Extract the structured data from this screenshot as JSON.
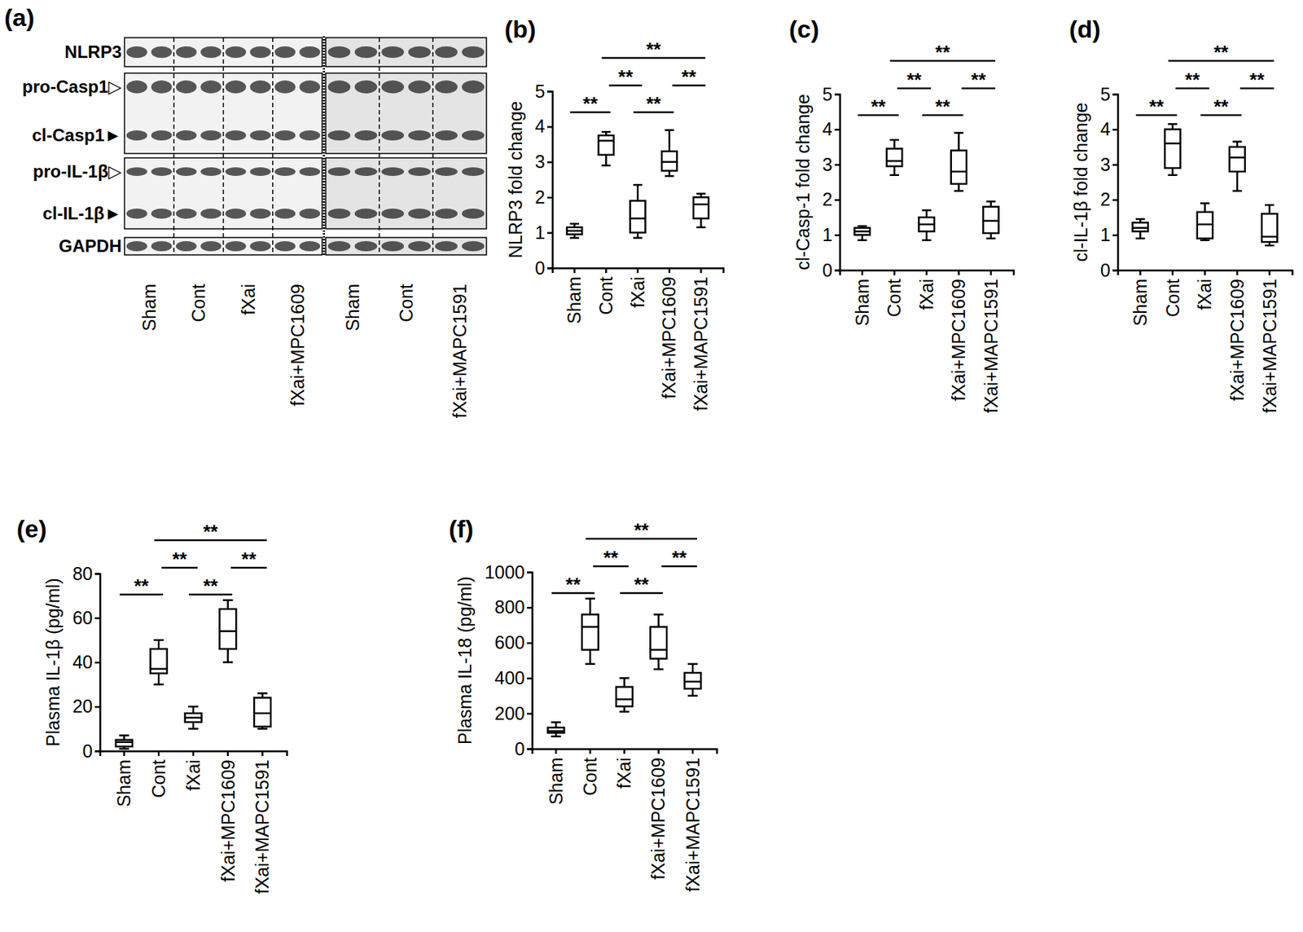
{
  "chart_data": [
    {
      "type": "blot",
      "title": "(a)",
      "rows": [
        "NLRP3",
        "pro-Casp1▷",
        "cl-Casp1►",
        "pro-IL-1β▷",
        "cl-IL-1β►",
        "GAPDH"
      ],
      "lane_groups": [
        [
          "Sham",
          "Cont",
          "fXai",
          "fXai+MPC1609"
        ],
        [
          "Sham",
          "Cont",
          "fXai+MAPC1591"
        ]
      ]
    },
    {
      "type": "box",
      "title": "(b)",
      "y_label": "NLRP3 fold change",
      "categories": [
        "Sham",
        "Cont",
        "fXai",
        "fXai+MPC1609",
        "fXai+MAPC1591"
      ],
      "ylim": [
        0,
        5
      ],
      "yticks": [
        0,
        1,
        2,
        3,
        4,
        5
      ],
      "boxes": [
        {
          "min": 0.85,
          "q1": 0.95,
          "median": 1.05,
          "q3": 1.15,
          "max": 1.25
        },
        {
          "min": 2.9,
          "q1": 3.2,
          "median": 3.6,
          "q3": 3.75,
          "max": 3.85
        },
        {
          "min": 0.85,
          "q1": 1.0,
          "median": 1.4,
          "q3": 1.9,
          "max": 2.35
        },
        {
          "min": 2.6,
          "q1": 2.75,
          "median": 3.0,
          "q3": 3.3,
          "max": 3.9
        },
        {
          "min": 1.15,
          "q1": 1.4,
          "median": 1.8,
          "q3": 2.0,
          "max": 2.1
        }
      ],
      "significance": [
        {
          "from": "Sham",
          "to": "Cont",
          "label": "**"
        },
        {
          "from": "Cont",
          "to": "fXai",
          "label": "**"
        },
        {
          "from": "fXai",
          "to": "fXai+MPC1609",
          "label": "**"
        },
        {
          "from": "fXai+MPC1609",
          "to": "fXai+MAPC1591",
          "label": "**"
        },
        {
          "from": "Cont",
          "to": "fXai+MAPC1591",
          "label": "**"
        }
      ]
    },
    {
      "type": "box",
      "title": "(c)",
      "y_label": "cl-Casp-1 fold change",
      "categories": [
        "Sham",
        "Cont",
        "fXai",
        "fXai+MPC1609",
        "fXai+MAPC1591"
      ],
      "ylim": [
        0,
        5
      ],
      "yticks": [
        0,
        1,
        2,
        3,
        4,
        5
      ],
      "boxes": [
        {
          "min": 0.85,
          "q1": 1.0,
          "median": 1.1,
          "q3": 1.2,
          "max": 1.25
        },
        {
          "min": 2.7,
          "q1": 2.95,
          "median": 3.1,
          "q3": 3.45,
          "max": 3.7
        },
        {
          "min": 0.85,
          "q1": 1.1,
          "median": 1.3,
          "q3": 1.5,
          "max": 1.7
        },
        {
          "min": 2.25,
          "q1": 2.45,
          "median": 2.8,
          "q3": 3.4,
          "max": 3.9
        },
        {
          "min": 0.9,
          "q1": 1.05,
          "median": 1.4,
          "q3": 1.8,
          "max": 1.95
        }
      ],
      "significance": [
        {
          "from": "Sham",
          "to": "Cont",
          "label": "**"
        },
        {
          "from": "Cont",
          "to": "fXai",
          "label": "**"
        },
        {
          "from": "fXai",
          "to": "fXai+MPC1609",
          "label": "**"
        },
        {
          "from": "fXai+MPC1609",
          "to": "fXai+MAPC1591",
          "label": "**"
        },
        {
          "from": "Cont",
          "to": "fXai+MAPC1591",
          "label": "**"
        }
      ]
    },
    {
      "type": "box",
      "title": "(d)",
      "y_label": "cl-IL-1β fold change",
      "categories": [
        "Sham",
        "Cont",
        "fXai",
        "fXai+MPC1609",
        "fXai+MAPC1591"
      ],
      "ylim": [
        0,
        5
      ],
      "yticks": [
        0,
        1,
        2,
        3,
        4,
        5
      ],
      "boxes": [
        {
          "min": 0.9,
          "q1": 1.1,
          "median": 1.2,
          "q3": 1.35,
          "max": 1.45
        },
        {
          "min": 2.7,
          "q1": 2.9,
          "median": 3.6,
          "q3": 4.0,
          "max": 4.15
        },
        {
          "min": 0.85,
          "q1": 0.9,
          "median": 1.3,
          "q3": 1.65,
          "max": 1.9
        },
        {
          "min": 2.25,
          "q1": 2.8,
          "median": 3.2,
          "q3": 3.5,
          "max": 3.65
        },
        {
          "min": 0.7,
          "q1": 0.8,
          "median": 0.95,
          "q3": 1.6,
          "max": 1.85
        }
      ],
      "significance": [
        {
          "from": "Sham",
          "to": "Cont",
          "label": "**"
        },
        {
          "from": "Cont",
          "to": "fXai",
          "label": "**"
        },
        {
          "from": "fXai",
          "to": "fXai+MPC1609",
          "label": "**"
        },
        {
          "from": "fXai+MPC1609",
          "to": "fXai+MAPC1591",
          "label": "**"
        },
        {
          "from": "Cont",
          "to": "fXai+MAPC1591",
          "label": "**"
        }
      ]
    },
    {
      "type": "box",
      "title": "(e)",
      "y_label": "Plasma IL-1β (pg/ml)",
      "categories": [
        "Sham",
        "Cont",
        "fXai",
        "fXai+MPC1609",
        "fXai+MAPC1591"
      ],
      "ylim": [
        0,
        80
      ],
      "yticks": [
        0,
        20,
        40,
        60,
        80
      ],
      "boxes": [
        {
          "min": 1,
          "q1": 2,
          "median": 4,
          "q3": 5,
          "max": 7
        },
        {
          "min": 30,
          "q1": 35,
          "median": 37,
          "q3": 46,
          "max": 50
        },
        {
          "min": 10,
          "q1": 13,
          "median": 15,
          "q3": 17,
          "max": 20
        },
        {
          "min": 40,
          "q1": 46,
          "median": 54,
          "q3": 64,
          "max": 68
        },
        {
          "min": 10,
          "q1": 11,
          "median": 17,
          "q3": 24,
          "max": 26
        }
      ],
      "significance": [
        {
          "from": "Sham",
          "to": "Cont",
          "label": "**"
        },
        {
          "from": "Cont",
          "to": "fXai",
          "label": "**"
        },
        {
          "from": "fXai",
          "to": "fXai+MPC1609",
          "label": "**"
        },
        {
          "from": "fXai+MPC1609",
          "to": "fXai+MAPC1591",
          "label": "**"
        },
        {
          "from": "Cont",
          "to": "fXai+MAPC1591",
          "label": "**"
        }
      ]
    },
    {
      "type": "box",
      "title": "(f)",
      "y_label": "Plasma IL-18 (pg/ml)",
      "categories": [
        "Sham",
        "Cont",
        "fXai",
        "fXai+MPC1609",
        "fXai+MAPC1591"
      ],
      "ylim": [
        0,
        1000
      ],
      "yticks": [
        0,
        200,
        400,
        600,
        800,
        1000
      ],
      "boxes": [
        {
          "min": 70,
          "q1": 90,
          "median": 100,
          "q3": 120,
          "max": 150
        },
        {
          "min": 480,
          "q1": 560,
          "median": 690,
          "q3": 760,
          "max": 850
        },
        {
          "min": 210,
          "q1": 240,
          "median": 280,
          "q3": 350,
          "max": 400
        },
        {
          "min": 450,
          "q1": 510,
          "median": 560,
          "q3": 690,
          "max": 760
        },
        {
          "min": 300,
          "q1": 340,
          "median": 380,
          "q3": 430,
          "max": 480
        }
      ],
      "significance": [
        {
          "from": "Sham",
          "to": "Cont",
          "label": "**"
        },
        {
          "from": "Cont",
          "to": "fXai",
          "label": "**"
        },
        {
          "from": "fXai",
          "to": "fXai+MPC1609",
          "label": "**"
        },
        {
          "from": "fXai+MPC1609",
          "to": "fXai+MAPC1591",
          "label": "**"
        },
        {
          "from": "Cont",
          "to": "fXai+MAPC1591",
          "label": "**"
        }
      ]
    }
  ]
}
